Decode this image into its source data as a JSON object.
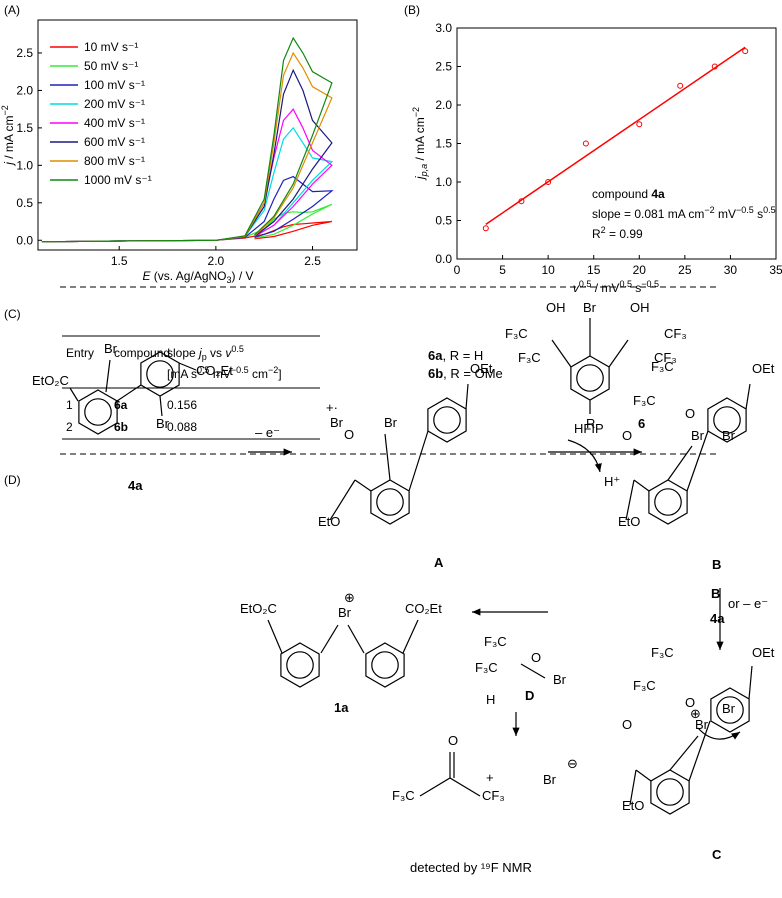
{
  "panel_labels": [
    "(A)",
    "(B)",
    "(C)",
    "(D)"
  ],
  "chart_data": [
    {
      "type": "line",
      "xlabel": [
        "E",
        " (vs. Ag/AgNO",
        "3",
        ") / V"
      ],
      "ylabel": [
        "j",
        " / mA cm",
        "−2"
      ],
      "legend": "upper left",
      "x": [
        1.1,
        1.5,
        2.0,
        2.15,
        2.25,
        2.3,
        2.35,
        2.4,
        2.45,
        2.5,
        2.6,
        2.5,
        2.4,
        2.3,
        2.2
      ],
      "xlim": [
        1.08,
        2.73
      ],
      "xticks": [
        1.5,
        {
          "value": 2,
          "label": "2.0"
        },
        2.5
      ],
      "ylim": [
        -0.13,
        2.94
      ],
      "yticks": [
        {
          "value": 0,
          "label": "0.0"
        },
        0.5,
        {
          "value": 1,
          "label": "1.0"
        },
        1.5,
        {
          "value": 2,
          "label": "2.0"
        },
        2.5
      ],
      "series": [
        {
          "name": "10 mV s⁻¹",
          "color": "#ff0000",
          "values": [
            -0.02,
            -0.01,
            0.0,
            0.03,
            0.08,
            0.13,
            0.18,
            0.21,
            0.22,
            0.23,
            0.25,
            0.2,
            0.12,
            0.05,
            0.02
          ]
        },
        {
          "name": "50 mV s⁻¹",
          "color": "#33ee33",
          "values": [
            -0.02,
            -0.01,
            0.0,
            0.04,
            0.15,
            0.28,
            0.36,
            0.38,
            0.37,
            0.38,
            0.48,
            0.35,
            0.2,
            0.08,
            0.03
          ]
        },
        {
          "name": "100 mV s⁻¹",
          "color": "#2020c0",
          "values": [
            -0.02,
            -0.01,
            0.0,
            0.04,
            0.25,
            0.55,
            0.8,
            0.85,
            0.75,
            0.65,
            0.66,
            0.45,
            0.28,
            0.12,
            0.04
          ]
        },
        {
          "name": "200 mV s⁻¹",
          "color": "#00dddd",
          "values": [
            -0.02,
            -0.01,
            0.0,
            0.05,
            0.4,
            0.9,
            1.35,
            1.5,
            1.3,
            1.1,
            1.05,
            0.8,
            0.5,
            0.2,
            0.05
          ]
        },
        {
          "name": "400 mV s⁻¹",
          "color": "#ff00ff",
          "values": [
            -0.02,
            -0.01,
            0.0,
            0.05,
            0.5,
            1.1,
            1.6,
            1.75,
            1.5,
            1.2,
            1.0,
            0.75,
            0.45,
            0.2,
            0.05
          ]
        },
        {
          "name": "600 mV s⁻¹",
          "color": "#1a1a80",
          "values": [
            -0.02,
            -0.01,
            0.0,
            0.05,
            0.45,
            1.15,
            1.95,
            2.27,
            2.0,
            1.6,
            1.3,
            0.95,
            0.55,
            0.25,
            0.05
          ]
        },
        {
          "name": "800 mV s⁻¹",
          "color": "#e08c00",
          "values": [
            -0.02,
            -0.01,
            0.0,
            0.05,
            0.5,
            1.3,
            2.2,
            2.5,
            2.3,
            2.05,
            1.9,
            1.3,
            0.7,
            0.3,
            0.06
          ]
        },
        {
          "name": "1000 mV s⁻¹",
          "color": "#118811",
          "values": [
            -0.02,
            -0.01,
            0.0,
            0.06,
            0.55,
            1.4,
            2.4,
            2.7,
            2.5,
            2.25,
            2.1,
            1.4,
            0.75,
            0.32,
            0.07
          ]
        }
      ]
    },
    {
      "type": "scatter",
      "xlabel": [
        "v",
        "0.5",
        " / mV",
        "0.5",
        " s",
        "−0.5"
      ],
      "ylabel": [
        "j",
        "p,a",
        " / mA cm",
        "−2"
      ],
      "color": "#ff0000",
      "x": [
        3.16,
        7.07,
        10,
        14.14,
        20,
        24.49,
        28.28,
        31.62
      ],
      "values": [
        0.4,
        0.75,
        1.0,
        1.5,
        1.75,
        2.25,
        2.5,
        2.7
      ],
      "fit": {
        "x": [
          3.16,
          31.62
        ],
        "values": [
          0.45,
          2.75
        ]
      },
      "annotation": [
        [
          "compound ",
          "4a"
        ],
        [
          "slope = 0.081 mA cm",
          "−2",
          " mV",
          "−0.5",
          " s",
          "0.5"
        ],
        [
          "R",
          "2",
          " = 0.99"
        ]
      ],
      "xlim": [
        0,
        35
      ],
      "xticks": [
        0,
        5,
        10,
        15,
        20,
        25,
        30,
        35
      ],
      "ylim": [
        0,
        3
      ],
      "yticks": [
        {
          "value": 0,
          "label": "0.0"
        },
        0.5,
        {
          "value": 1,
          "label": "1.0"
        },
        1.5,
        {
          "value": 2,
          "label": "2.0"
        },
        2.5,
        {
          "value": 3,
          "label": "3.0"
        }
      ]
    }
  ],
  "table": {
    "header": [
      "Entry",
      "compound",
      [
        "slope ",
        "j",
        "p",
        " vs ",
        "v",
        "0.5"
      ]
    ],
    "header_units": [
      "[mA s",
      "0.5",
      " mV",
      "−0.5",
      " cm",
      "−2",
      "]"
    ],
    "rows": [
      [
        1,
        "6a",
        0.156
      ],
      [
        2,
        "6b",
        0.088
      ]
    ]
  },
  "structure_6": {
    "variants": [
      [
        "6a",
        ", R = H"
      ],
      [
        "6b",
        ", R = OMe"
      ]
    ],
    "labels": [
      "OH",
      "Br",
      "OH",
      "F₃C",
      "F₃C",
      "CF₃",
      "CF₃",
      "R",
      "6"
    ]
  },
  "scheme": {
    "labels": [
      "EtO₂C",
      "Br",
      "CO₂Et",
      "Br",
      "4a",
      "– e⁻",
      "+·",
      "Br",
      "Br",
      "O",
      "OEt",
      "EtO",
      "A",
      "HFIP",
      "H⁺",
      "F₃C",
      "F₃C",
      "O",
      "Br",
      "Br",
      "O",
      "OEt",
      "EtO",
      "B",
      "B",
      "or – e⁻",
      "4a",
      "F₃C",
      "F₃C",
      "O",
      "Br",
      "Br",
      "O",
      "OEt",
      "EtO",
      "C",
      "F₃C",
      "F₃C",
      "O",
      "Br",
      "H",
      "D",
      "O",
      "F₃C",
      "CF₃",
      "+",
      "Br",
      "⊖",
      "detected by ¹⁹F NMR",
      "EtO₂C",
      "Br",
      "⊕",
      "CO₂Et",
      "1a",
      "⊕"
    ]
  }
}
